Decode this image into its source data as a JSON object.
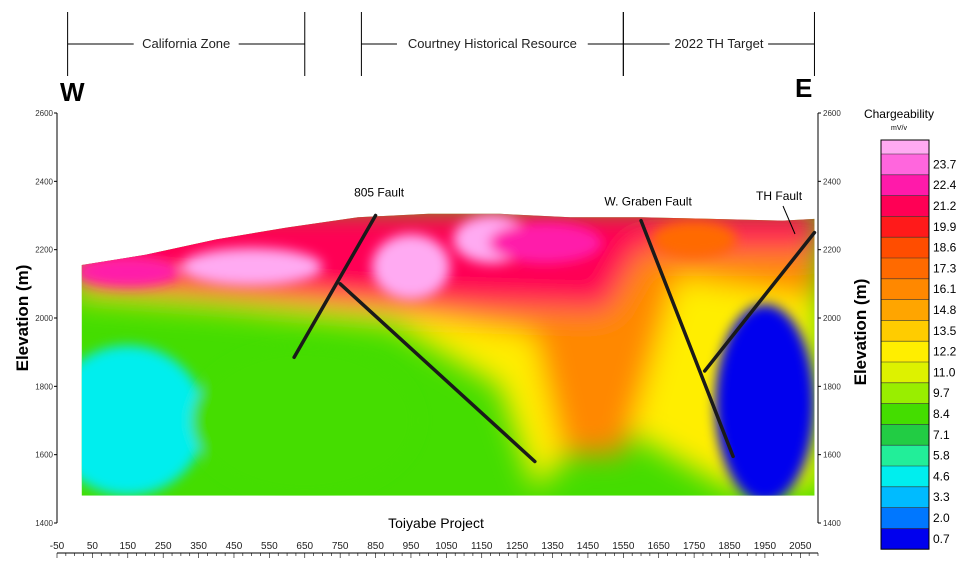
{
  "zones": [
    {
      "label": "California Zone",
      "x_from": -20,
      "x_to": 650
    },
    {
      "label": "Courtney Historical Resource",
      "x_from": 810,
      "x_to": 1550
    },
    {
      "label": "2022 TH Target",
      "x_from": 1550,
      "x_to": 2090
    }
  ],
  "direction": {
    "west": "W",
    "east": "E"
  },
  "project_label": "Toiyabe Project",
  "chart_data": {
    "type": "heatmap",
    "title": "",
    "xlabel": "",
    "ylabel": "Elevation (m)",
    "right_ylabel": "Elevation (m)",
    "xlim": [
      -50,
      2100
    ],
    "ylim": [
      1400,
      2600
    ],
    "x_ticks": [
      -50,
      50,
      150,
      250,
      350,
      450,
      550,
      650,
      750,
      850,
      950,
      1050,
      1150,
      1250,
      1350,
      1450,
      1550,
      1650,
      1750,
      1850,
      1950,
      2050
    ],
    "y_ticks": [
      1400,
      1600,
      1800,
      2000,
      2200,
      2400,
      2600
    ],
    "section_bottom": 1480,
    "topography": [
      [
        20,
        2155
      ],
      [
        200,
        2185
      ],
      [
        400,
        2230
      ],
      [
        600,
        2265
      ],
      [
        800,
        2295
      ],
      [
        1000,
        2305
      ],
      [
        1200,
        2305
      ],
      [
        1400,
        2295
      ],
      [
        1600,
        2295
      ],
      [
        1800,
        2290
      ],
      [
        2000,
        2285
      ],
      [
        2090,
        2290
      ]
    ],
    "faults": [
      {
        "label": "805 Fault",
        "x": [
          620,
          850
        ],
        "y": [
          1885,
          2300
        ],
        "label_at": [
          860,
          2355
        ]
      },
      {
        "label": "805 Fault",
        "x": [
          750,
          1300
        ],
        "y": [
          2100,
          1580
        ]
      },
      {
        "label": "W. Graben Fault",
        "x": [
          1600,
          1860
        ],
        "y": [
          2285,
          1595
        ],
        "label_at": [
          1620,
          2330
        ]
      },
      {
        "label": "TH Fault",
        "x": [
          1780,
          2090
        ],
        "y": [
          1845,
          2250
        ],
        "label_at": [
          1990,
          2345
        ]
      }
    ],
    "anomalies": [
      {
        "x": 950,
        "y": 2150,
        "rx": 110,
        "ry": 95,
        "value": 25
      },
      {
        "x": 1180,
        "y": 2230,
        "rx": 110,
        "ry": 70,
        "value": 25
      },
      {
        "x": 1330,
        "y": 2220,
        "rx": 160,
        "ry": 60,
        "value": 22.4
      },
      {
        "x": 500,
        "y": 2150,
        "rx": 200,
        "ry": 55,
        "value": 24
      },
      {
        "x": 150,
        "y": 2135,
        "rx": 150,
        "ry": 45,
        "value": 22.4
      },
      {
        "x": 1750,
        "y": 2230,
        "rx": 120,
        "ry": 55,
        "value": 17
      },
      {
        "x": 1950,
        "y": 1750,
        "rx": 140,
        "ry": 290,
        "value": 0.7
      },
      {
        "x": 150,
        "y": 1700,
        "rx": 220,
        "ry": 220,
        "value": 4.6
      },
      {
        "x": 650,
        "y": 1700,
        "rx": 320,
        "ry": 220,
        "value": 8.4
      }
    ],
    "legend": {
      "title": "Chargeability",
      "unit": "mV/v",
      "values": [
        23.7,
        22.4,
        21.2,
        19.9,
        18.6,
        17.3,
        16.1,
        14.8,
        13.5,
        12.2,
        11.0,
        9.7,
        8.4,
        7.1,
        5.8,
        4.6,
        3.3,
        2.0,
        0.7
      ],
      "labels": [
        "23.7",
        "22.4",
        "21.2",
        "19.9",
        "18.6",
        "17.3",
        "16.1",
        "14.8",
        "13.5",
        "12.2",
        "11.0",
        "9.7",
        "8.4",
        "7.1",
        "5.8",
        "4.6",
        "3.3",
        "2.0",
        "0.7"
      ],
      "colors": [
        "#ff66dd",
        "#ff1aaa",
        "#ff0055",
        "#ff1a1a",
        "#ff4d00",
        "#ff6a00",
        "#ff8800",
        "#ffa500",
        "#ffcc00",
        "#ffee00",
        "#ddf200",
        "#99ee00",
        "#44dd00",
        "#22cc44",
        "#22ee99",
        "#00eeee",
        "#00bbff",
        "#0077ff",
        "#0000ee"
      ],
      "top_color": "#ffaaf2"
    }
  }
}
